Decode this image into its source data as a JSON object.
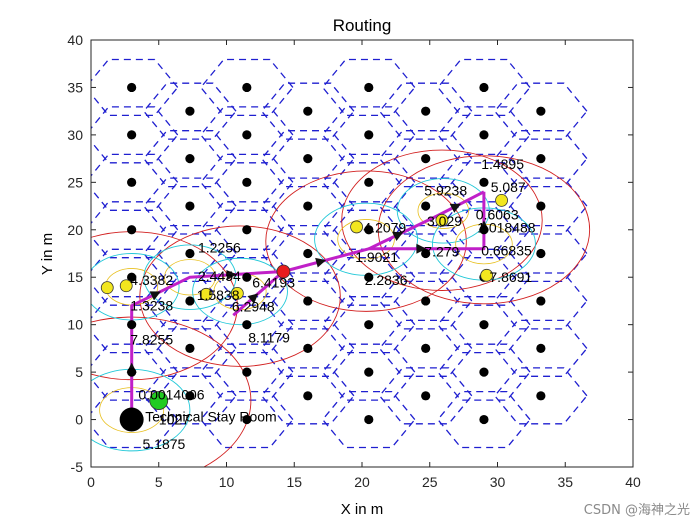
{
  "chart_data": {
    "type": "scatter",
    "title": "Routing",
    "xlabel": "X in m",
    "ylabel": "Y in m",
    "xlim": [
      0,
      40
    ],
    "ylim": [
      -5,
      40
    ],
    "xticks": [
      "0",
      "5",
      "10",
      "15",
      "20",
      "25",
      "30",
      "35",
      "40"
    ],
    "yticks": [
      "-5",
      "0",
      "5",
      "10",
      "15",
      "20",
      "25",
      "30",
      "35",
      "40"
    ],
    "grid": false,
    "hex_radius": 3.4,
    "cell_nodes": [
      [
        3,
        0
      ],
      [
        11.5,
        0
      ],
      [
        20.5,
        0
      ],
      [
        29,
        0
      ],
      [
        7.3,
        2.5
      ],
      [
        16,
        2.5
      ],
      [
        24.7,
        2.5
      ],
      [
        33.2,
        2.5
      ],
      [
        3,
        5
      ],
      [
        11.5,
        5
      ],
      [
        20.5,
        5
      ],
      [
        29,
        5
      ],
      [
        7.3,
        7.5
      ],
      [
        16,
        7.5
      ],
      [
        24.7,
        7.5
      ],
      [
        33.2,
        7.5
      ],
      [
        3,
        10
      ],
      [
        11.5,
        10
      ],
      [
        20.5,
        10
      ],
      [
        29,
        10
      ],
      [
        7.3,
        12.5
      ],
      [
        16,
        12.5
      ],
      [
        24.7,
        12.5
      ],
      [
        33.2,
        12.5
      ],
      [
        3,
        15
      ],
      [
        11.5,
        15
      ],
      [
        20.5,
        15
      ],
      [
        29,
        15
      ],
      [
        7.3,
        17.5
      ],
      [
        16,
        17.5
      ],
      [
        24.7,
        17.5
      ],
      [
        33.2,
        17.5
      ],
      [
        3,
        20
      ],
      [
        11.5,
        20
      ],
      [
        20.5,
        20
      ],
      [
        29,
        20
      ],
      [
        7.3,
        22.5
      ],
      [
        16,
        22.5
      ],
      [
        24.7,
        22.5
      ],
      [
        33.2,
        22.5
      ],
      [
        3,
        25
      ],
      [
        11.5,
        25
      ],
      [
        20.5,
        25
      ],
      [
        29,
        25
      ],
      [
        7.3,
        27.5
      ],
      [
        16,
        27.5
      ],
      [
        24.7,
        27.5
      ],
      [
        33.2,
        27.5
      ],
      [
        3,
        30
      ],
      [
        11.5,
        30
      ],
      [
        20.5,
        30
      ],
      [
        29,
        30
      ],
      [
        7.3,
        32.5
      ],
      [
        16,
        32.5
      ],
      [
        24.7,
        32.5
      ],
      [
        33.2,
        32.5
      ],
      [
        3,
        35
      ],
      [
        11.5,
        35
      ],
      [
        20.5,
        35
      ],
      [
        29,
        35
      ]
    ],
    "route": [
      [
        3,
        0
      ],
      [
        3,
        12
      ],
      [
        7.3,
        15
      ],
      [
        14.2,
        15.6
      ],
      [
        20.5,
        18
      ],
      [
        29,
        18
      ],
      [
        29,
        24
      ]
    ],
    "route_branch": [
      [
        10.5,
        11
      ],
      [
        14.2,
        15.6
      ]
    ],
    "route_branch2": [
      [
        20.5,
        18
      ],
      [
        25.6,
        21.5
      ],
      [
        29,
        24
      ]
    ],
    "yellow_nodes": [
      [
        1.2,
        13.9
      ],
      [
        2.6,
        14.1
      ],
      [
        8.5,
        13.2
      ],
      [
        10.8,
        13.3
      ],
      [
        19.6,
        20.3
      ],
      [
        25.9,
        21
      ],
      [
        29.2,
        15.2
      ],
      [
        30.3,
        23.1
      ]
    ],
    "red_node": [
      14.2,
      15.6
    ],
    "green_node": [
      5,
      2
    ],
    "sink_node": [
      3,
      0
    ],
    "red_circles": [
      [
        3,
        2,
        8.8
      ],
      [
        3,
        12,
        7.8
      ],
      [
        11,
        13,
        7.4
      ],
      [
        20.3,
        18.8,
        7.4
      ],
      [
        25.9,
        21,
        7.4
      ],
      [
        29,
        20,
        7.8
      ]
    ],
    "cyan_circles": [
      [
        3,
        1,
        4.3
      ],
      [
        3,
        14,
        3.5
      ],
      [
        7.3,
        15,
        3.4
      ],
      [
        11,
        13.5,
        3.5
      ],
      [
        20.3,
        19,
        3.8
      ],
      [
        26,
        22,
        3.4
      ],
      [
        29,
        18.5,
        3.8
      ]
    ],
    "labels": [
      {
        "text": "1.2256",
        "x": 7.9,
        "y": 17.6
      },
      {
        "text": "4.3382",
        "x": 2.9,
        "y": 14.2
      },
      {
        "text": "2.4454",
        "x": 7.9,
        "y": 14.6
      },
      {
        "text": "6.4193",
        "x": 11.9,
        "y": 13.9
      },
      {
        "text": "1.3238",
        "x": 2.9,
        "y": 11.5
      },
      {
        "text": "1.5838",
        "x": 7.8,
        "y": 12.6
      },
      {
        "text": "6.2948",
        "x": 10.4,
        "y": 11.4
      },
      {
        "text": "7.8255",
        "x": 2.9,
        "y": 7.9
      },
      {
        "text": "8.1179",
        "x": 11.6,
        "y": 8.1
      },
      {
        "text": "4.2079",
        "x": 20.1,
        "y": 19.7
      },
      {
        "text": "5.9238",
        "x": 24.6,
        "y": 23.6
      },
      {
        "text": "1.4895",
        "x": 28.8,
        "y": 26.4
      },
      {
        "text": "5.087",
        "x": 29.5,
        "y": 24
      },
      {
        "text": "3.029",
        "x": 24.8,
        "y": 20.4
      },
      {
        "text": "0.6063",
        "x": 28.4,
        "y": 21.1
      },
      {
        "text": "1.018488",
        "x": 28.5,
        "y": 19.7
      },
      {
        "text": "1.9021",
        "x": 19.5,
        "y": 16.6
      },
      {
        "text": "7.279",
        "x": 24.6,
        "y": 17.2
      },
      {
        "text": "0.66835",
        "x": 28.8,
        "y": 17.3
      },
      {
        "text": "2.2836",
        "x": 20.2,
        "y": 14.2
      },
      {
        "text": "7.8691",
        "x": 29.4,
        "y": 14.5
      },
      {
        "text": "0.0014006",
        "x": 3.5,
        "y": 2.1
      },
      {
        "text": "Technical Stay Room",
        "x": 4,
        "y": -0.2
      },
      {
        "text": "1027",
        "x": 5,
        "y": -0.5
      },
      {
        "text": "5.1875",
        "x": 3.8,
        "y": -3.1
      }
    ]
  },
  "watermark": "CSDN @海神之光"
}
